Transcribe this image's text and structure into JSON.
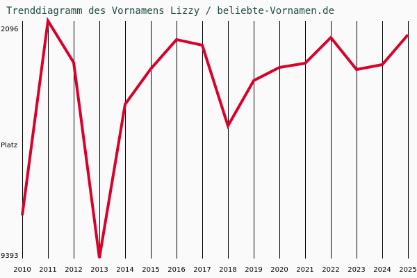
{
  "title": "Trenddiagramm des Vornamens Lizzy / beliebte-Vornamen.de",
  "colors": {
    "line": "#d9002a",
    "title": "#1f4a44",
    "grid": "#000000",
    "background": "#fafafa"
  },
  "chart_data": {
    "type": "line",
    "title": "Trenddiagramm des Vornamens Lizzy / beliebte-Vornamen.de",
    "xlabel": "",
    "ylabel": "Platz",
    "y_inverted": true,
    "ylim": [
      9393,
      2096
    ],
    "y_ticks": [
      "2096",
      "9393"
    ],
    "grid": {
      "vertical": true,
      "horizontal": false
    },
    "legend": null,
    "categories": [
      "2010",
      "2011",
      "2012",
      "2013",
      "2014",
      "2015",
      "2016",
      "2017",
      "2018",
      "2019",
      "2020",
      "2021",
      "2022",
      "2023",
      "2024",
      "2025"
    ],
    "series": [
      {
        "name": "Lizzy",
        "values": [
          8067,
          2096,
          3377,
          9371,
          4657,
          3569,
          2672,
          2843,
          5319,
          3931,
          3526,
          3398,
          2608,
          3590,
          3441,
          2523
        ]
      }
    ]
  }
}
